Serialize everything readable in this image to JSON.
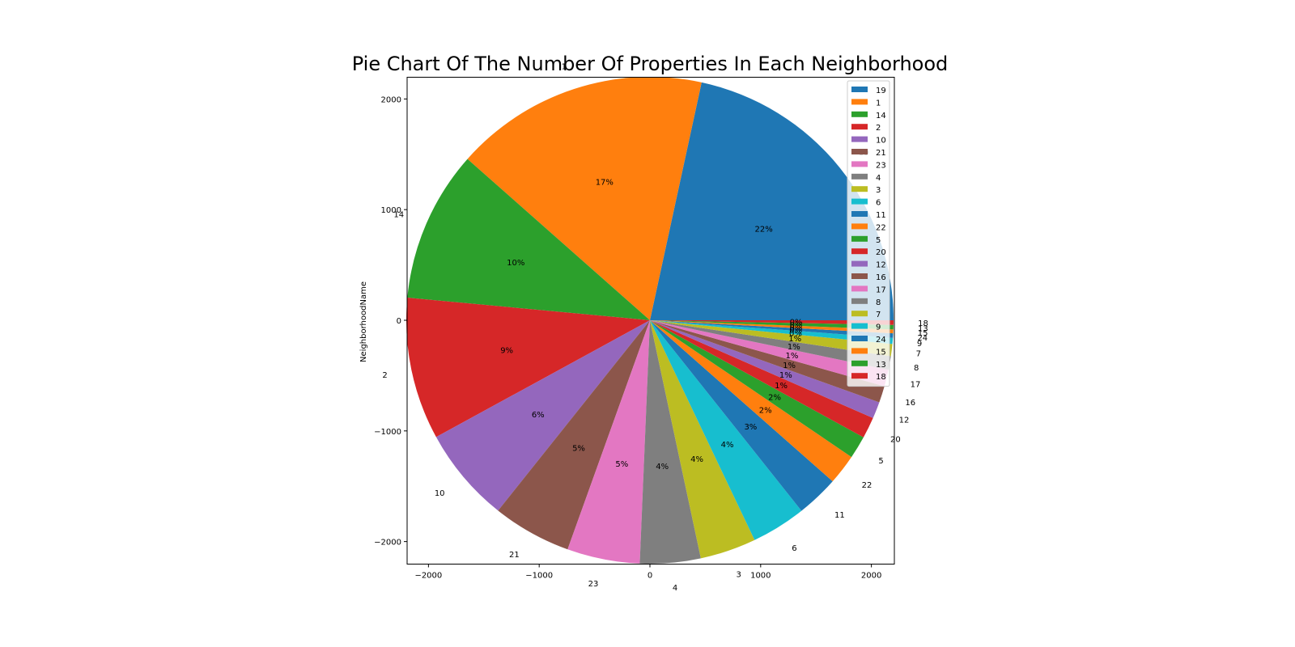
{
  "chart_data": {
    "type": "pie",
    "title": "Pie Chart Of The Number Of Properties In Each Neighborhood",
    "ylabel": "NeighborhoodName",
    "xlabel": "",
    "start_angle_deg": 0,
    "direction": "counterclockwise",
    "radius": 2200,
    "xlim": [
      -2200,
      2200
    ],
    "ylim": [
      -2200,
      2200
    ],
    "x_ticks": [
      -2000,
      -1000,
      0,
      1000,
      2000
    ],
    "x_tick_labels": [
      "−2000",
      "−1000",
      "0",
      "1000",
      "2000"
    ],
    "y_ticks": [
      2000,
      1000,
      0,
      -1000,
      -2000
    ],
    "y_tick_labels": [
      "2000",
      "1000",
      "0",
      "−1000",
      "−2000"
    ],
    "legend_position": "top-right",
    "categories": [
      "19",
      "1",
      "14",
      "2",
      "10",
      "21",
      "23",
      "4",
      "3",
      "6",
      "11",
      "22",
      "5",
      "20",
      "12",
      "16",
      "17",
      "8",
      "7",
      "9",
      "24",
      "15",
      "13",
      "18"
    ],
    "values": [
      21.5,
      16.8,
      10.0,
      9.4,
      6.3,
      5.2,
      4.8,
      4.0,
      3.7,
      3.6,
      2.8,
      2.0,
      1.5,
      1.4,
      1.1,
      1.1,
      1.1,
      0.9,
      0.8,
      0.4,
      0.3,
      0.25,
      0.3,
      0.3
    ],
    "pct_labels": [
      "22%",
      "17%",
      "10%",
      "9%",
      "6%",
      "5%",
      "5%",
      "4%",
      "4%",
      "4%",
      "3%",
      "2%",
      "2%",
      "1%",
      "1%",
      "1%",
      "1%",
      "1%",
      "1%",
      "0%",
      "0%",
      "0%",
      "0%",
      "0%"
    ],
    "colors": [
      "#1f77b4",
      "#ff7f0e",
      "#2ca02c",
      "#d62728",
      "#9467bd",
      "#8c564b",
      "#e377c2",
      "#7f7f7f",
      "#bcbd22",
      "#17becf",
      "#1f77b4",
      "#ff7f0e",
      "#2ca02c",
      "#d62728",
      "#9467bd",
      "#8c564b",
      "#e377c2",
      "#7f7f7f",
      "#bcbd22",
      "#17becf",
      "#1f77b4",
      "#ff7f0e",
      "#2ca02c",
      "#d62728"
    ]
  }
}
